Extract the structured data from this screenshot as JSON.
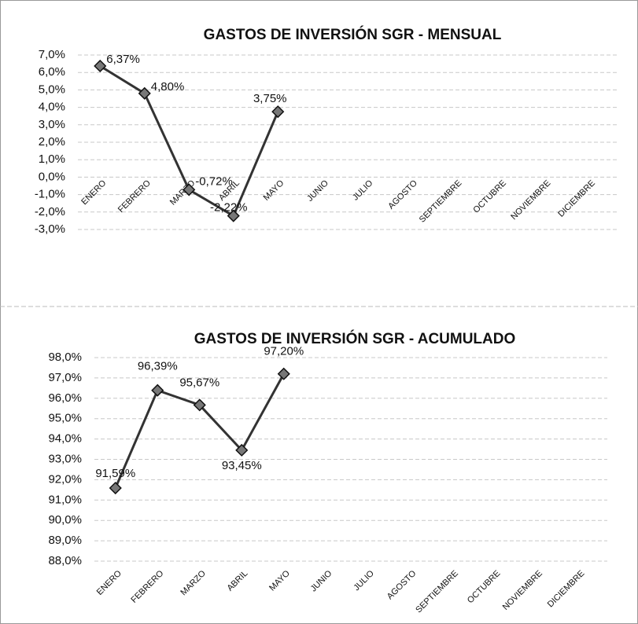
{
  "chart_data": [
    {
      "type": "line",
      "title": "GASTOS DE INVERSIÓN SGR - MENSUAL",
      "categories": [
        "ENERO",
        "FEBRERO",
        "MARZO",
        "ABRIL",
        "MAYO",
        "JUNIO",
        "JULIO",
        "AGOSTO",
        "SEPTIEMBRE",
        "OCTUBRE",
        "NOVIEMBRE",
        "DICIEMBRE"
      ],
      "values": [
        6.37,
        4.8,
        -0.72,
        -2.22,
        3.75,
        null,
        null,
        null,
        null,
        null,
        null,
        null
      ],
      "value_labels": [
        "6,37%",
        "4,80%",
        "-0,72%",
        "-2,22%",
        "3,75%",
        null,
        null,
        null,
        null,
        null,
        null,
        null
      ],
      "color": "#333333",
      "ylim": [
        -3,
        7
      ],
      "yticks": [
        {
          "value": -3,
          "label": "-3,0%"
        },
        {
          "value": -2,
          "label": "-2,0%"
        },
        {
          "value": -1,
          "label": "-1,0%"
        },
        {
          "value": 0,
          "label": "0,0%"
        },
        {
          "value": 1,
          "label": "1,0%"
        },
        {
          "value": 2,
          "label": "2,0%"
        },
        {
          "value": 3,
          "label": "3,0%"
        },
        {
          "value": 4,
          "label": "4,0%"
        },
        {
          "value": 5,
          "label": "5,0%"
        },
        {
          "value": 6,
          "label": "6,0%"
        },
        {
          "value": 7,
          "label": "7,0%"
        }
      ],
      "grid": true
    },
    {
      "type": "line",
      "title": "GASTOS DE INVERSIÓN SGR - ACUMULADO",
      "categories": [
        "ENERO",
        "FEBRERO",
        "MARZO",
        "ABRIL",
        "MAYO",
        "JUNIO",
        "JULIO",
        "AGOSTO",
        "SEPTIEMBRE",
        "OCTUBRE",
        "NOVIEMBRE",
        "DICIEMBRE"
      ],
      "values": [
        91.59,
        96.39,
        95.67,
        93.45,
        97.2,
        null,
        null,
        null,
        null,
        null,
        null,
        null
      ],
      "value_labels": [
        "91,59%",
        "96,39%",
        "95,67%",
        "93,45%",
        "97,20%",
        null,
        null,
        null,
        null,
        null,
        null,
        null
      ],
      "color": "#333333",
      "ylim": [
        88,
        98
      ],
      "yticks": [
        {
          "value": 88,
          "label": "88,0%"
        },
        {
          "value": 89,
          "label": "89,0%"
        },
        {
          "value": 90,
          "label": "90,0%"
        },
        {
          "value": 91,
          "label": "91,0%"
        },
        {
          "value": 92,
          "label": "92,0%"
        },
        {
          "value": 93,
          "label": "93,0%"
        },
        {
          "value": 94,
          "label": "94,0%"
        },
        {
          "value": 95,
          "label": "95,0%"
        },
        {
          "value": 96,
          "label": "96,0%"
        },
        {
          "value": 97,
          "label": "97,0%"
        },
        {
          "value": 98,
          "label": "98,0%"
        }
      ],
      "grid": true
    }
  ]
}
